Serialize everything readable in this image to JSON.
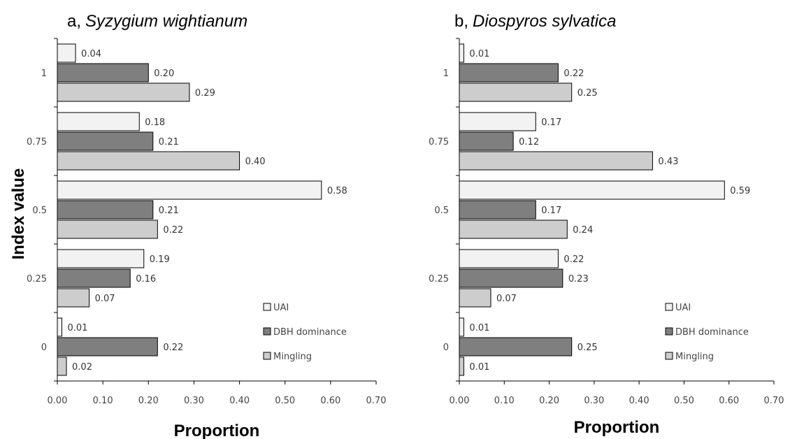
{
  "chart_data": [
    {
      "type": "bar",
      "orientation": "horizontal",
      "title_prefix": "a,",
      "title_species": "Syzygium wightianum",
      "xlabel": "Proportion",
      "ylabel": "Index value",
      "xlim": [
        0,
        0.7
      ],
      "categories": [
        "0",
        "0.25",
        "0.5",
        "0.75",
        "1"
      ],
      "x_ticks": [
        "0.00",
        "0.10",
        "0.20",
        "0.30",
        "0.40",
        "0.50",
        "0.60",
        "0.70"
      ],
      "legend_position": "bottom-right",
      "series": [
        {
          "name": "UAI",
          "color": "#f2f2f2",
          "values": [
            0.01,
            0.19,
            0.58,
            0.18,
            0.04
          ],
          "labels": [
            "0.01",
            "0.19",
            "0.58",
            "0.18",
            "0.04"
          ]
        },
        {
          "name": "DBH dominance",
          "color": "#7f7f7f",
          "values": [
            0.22,
            0.16,
            0.21,
            0.21,
            0.2
          ],
          "labels": [
            "0.22",
            "0.16",
            "0.21",
            "0.21",
            "0.20"
          ]
        },
        {
          "name": "Mingling",
          "color": "#cdcdcd",
          "values": [
            0.02,
            0.07,
            0.22,
            0.4,
            0.29
          ],
          "labels": [
            "0.02",
            "0.07",
            "0.22",
            "0.40",
            "0.29"
          ]
        }
      ]
    },
    {
      "type": "bar",
      "orientation": "horizontal",
      "title_prefix": "b,",
      "title_species": "Diospyros sylvatica",
      "xlabel": "Proportion",
      "ylabel": "",
      "xlim": [
        0,
        0.7
      ],
      "categories": [
        "0",
        "0.25",
        "0.5",
        "0.75",
        "1"
      ],
      "x_ticks": [
        "0.00",
        "0.10",
        "0.20",
        "0.30",
        "0.40",
        "0.50",
        "0.60",
        "0.70"
      ],
      "legend_position": "bottom-right",
      "series": [
        {
          "name": "UAI",
          "color": "#f2f2f2",
          "values": [
            0.01,
            0.22,
            0.59,
            0.17,
            0.01
          ],
          "labels": [
            "0.01",
            "0.22",
            "0.59",
            "0.17",
            "0.01"
          ]
        },
        {
          "name": "DBH dominance",
          "color": "#7f7f7f",
          "values": [
            0.25,
            0.23,
            0.17,
            0.12,
            0.22
          ],
          "labels": [
            "0.25",
            "0.23",
            "0.17",
            "0.12",
            "0.22"
          ]
        },
        {
          "name": "Mingling",
          "color": "#cdcdcd",
          "values": [
            0.01,
            0.07,
            0.24,
            0.43,
            0.25
          ],
          "labels": [
            "0.01",
            "0.07",
            "0.24",
            "0.43",
            "0.25"
          ]
        }
      ]
    }
  ]
}
